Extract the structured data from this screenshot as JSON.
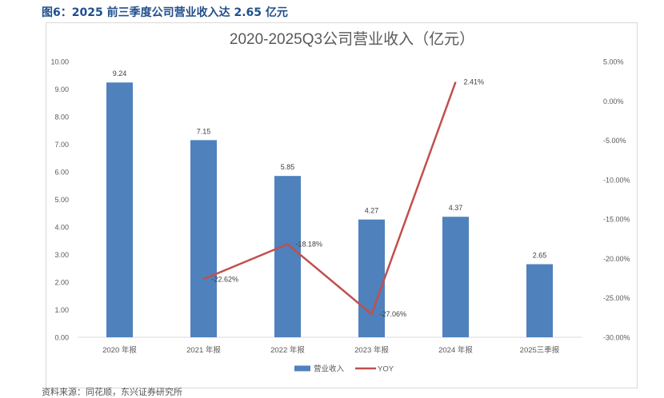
{
  "figure_title": "图6：2025 前三季度公司营业收入达 2.65 亿元",
  "source_note": "资料来源：同花顺，东兴证券研究所",
  "chart_data": {
    "type": "bar",
    "title": "2020-2025Q3公司营业收入（亿元）",
    "categories": [
      "2020 年报",
      "2021 年报",
      "2022 年报",
      "2023 年报",
      "2024 年报",
      "2025三季报"
    ],
    "series": [
      {
        "name": "营业收入",
        "type": "bar",
        "axis": "left",
        "color": "#4f81bd",
        "values": [
          9.24,
          7.15,
          5.85,
          4.27,
          4.37,
          2.65
        ],
        "data_labels": [
          "9.24",
          "7.15",
          "5.85",
          "4.27",
          "4.37",
          "2.65"
        ]
      },
      {
        "name": "YOY",
        "type": "line",
        "axis": "right",
        "color": "#c0504d",
        "values": [
          null,
          -22.62,
          -18.18,
          -27.06,
          2.41,
          null
        ],
        "data_labels": [
          "",
          "-22.62%",
          "-18.18%",
          "-27.06%",
          "2.41%",
          ""
        ]
      }
    ],
    "y_left": {
      "min": 0,
      "max": 10,
      "step": 1,
      "tick_labels": [
        "0.00",
        "1.00",
        "2.00",
        "3.00",
        "4.00",
        "5.00",
        "6.00",
        "7.00",
        "8.00",
        "9.00",
        "10.00"
      ]
    },
    "y_right": {
      "min": -30,
      "max": 5,
      "step": 5,
      "tick_labels": [
        "-30.00%",
        "-25.00%",
        "-20.00%",
        "-15.00%",
        "-10.00%",
        "-5.00%",
        "0.00%",
        "5.00%"
      ]
    },
    "legend": {
      "position": "bottom",
      "items": [
        {
          "label": "营业收入",
          "color": "#4f81bd",
          "kind": "bar"
        },
        {
          "label": "YOY",
          "color": "#c0504d",
          "kind": "line"
        }
      ]
    },
    "grid": false
  }
}
